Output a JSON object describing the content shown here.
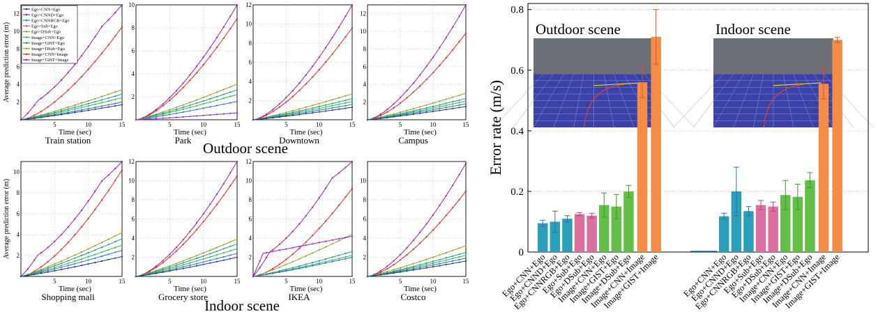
{
  "colors": {
    "purple": "#a21ba8",
    "red": "#e8251d",
    "olive": "#9b9b2a",
    "teal": "#1b9e8e",
    "green": "#3bb54a",
    "blue": "#2a78c2",
    "navy": "#223a8c",
    "pink": "#d4569e",
    "magenta": "#8a2ad0",
    "bar_blue": "#2a9fb9",
    "bar_pink": "#dc6f9d",
    "bar_green": "#63bf45",
    "bar_orange": "#f58c46",
    "err_blue": "#2a6fb0",
    "err_pink": "#b83f78",
    "err_green": "#3a9a2c",
    "err_orange": "#e0502a"
  },
  "left_panels": {
    "ylabel": "Average prediction error (m)",
    "xlabel": "Time (sec)",
    "xticks": [
      "5",
      "10",
      "15"
    ],
    "group_titles": {
      "outdoor": "Outdoor scene",
      "indoor": "Indoor scene"
    },
    "legend": [
      "Ego+CNN+Ego",
      "Ego+CNND+Ego",
      "Ego+CNNRGB+Ego",
      "Ego+Sub+Ego",
      "Ego+DSub+Ego",
      "Image+CNN+Ego",
      "Image+GIST+Ego",
      "Image+DSub+Ego",
      "Image+CNN+Image",
      "Image+GIST+Image"
    ]
  },
  "right_panel": {
    "ylabel": "Error rate (m/s)",
    "yticks": [
      "0",
      "0.2",
      "0.4",
      "0.6",
      "0.8"
    ],
    "inset_outdoor_title": "Outdoor scene",
    "inset_indoor_title": "Indoor scene"
  },
  "chart_data": [
    {
      "type": "line",
      "title": "Train station",
      "xlabel": "Time (sec)",
      "ylabel": "Average prediction error (m)",
      "xlim": [
        0,
        15
      ],
      "ylim": [
        0,
        13
      ],
      "yticks": [
        2,
        4,
        6,
        8,
        10,
        12
      ],
      "series": [
        {
          "name": "Image+GIST+Image",
          "x": [
            0,
            15
          ],
          "y": [
            0,
            13
          ],
          "color": "purple"
        },
        {
          "name": "Image+CNN+Image",
          "x": [
            0,
            15
          ],
          "y": [
            0,
            10.5
          ],
          "color": "red"
        },
        {
          "name": "Image+DSub+Ego",
          "x": [
            0,
            15
          ],
          "y": [
            0,
            3.4
          ],
          "color": "olive"
        },
        {
          "name": "Image+CNN+Ego",
          "x": [
            0,
            15
          ],
          "y": [
            0,
            2.9
          ],
          "color": "teal"
        },
        {
          "name": "Image+GIST+Ego",
          "x": [
            0,
            15
          ],
          "y": [
            0,
            2.5
          ],
          "color": "green"
        },
        {
          "name": "Ego+CNN+Ego",
          "x": [
            0,
            15
          ],
          "y": [
            0,
            2.0
          ],
          "color": "blue"
        },
        {
          "name": "Ego+CNND+Ego",
          "x": [
            0,
            15
          ],
          "y": [
            0,
            1.7
          ],
          "color": "navy"
        }
      ]
    },
    {
      "type": "line",
      "title": "Park",
      "xlabel": "Time (sec)",
      "ylabel": "",
      "xlim": [
        0,
        15
      ],
      "ylim": [
        0,
        10
      ],
      "yticks": [
        2,
        4,
        6,
        8,
        10
      ],
      "series": [
        {
          "name": "Image+GIST+Image",
          "x": [
            0,
            15
          ],
          "y": [
            0,
            10
          ],
          "color": "purple"
        },
        {
          "name": "Image+CNN+Image",
          "x": [
            0,
            15
          ],
          "y": [
            0,
            8.8
          ],
          "color": "red"
        },
        {
          "name": "Image+DSub+Ego",
          "x": [
            0,
            15
          ],
          "y": [
            0,
            3.1
          ],
          "color": "olive"
        },
        {
          "name": "Image+CNN+Ego",
          "x": [
            0,
            15
          ],
          "y": [
            0,
            2.6
          ],
          "color": "teal"
        },
        {
          "name": "Image+GIST+Ego",
          "x": [
            0,
            15
          ],
          "y": [
            0,
            2.2
          ],
          "color": "green"
        },
        {
          "name": "Ego+CNN+Ego",
          "x": [
            0,
            15
          ],
          "y": [
            0,
            1.6
          ],
          "color": "blue"
        },
        {
          "name": "Ego+CNND+Ego",
          "x": [
            0,
            15
          ],
          "y": [
            0,
            0.6
          ],
          "color": "magenta"
        }
      ]
    },
    {
      "type": "line",
      "title": "Downtown",
      "xlabel": "Time (sec)",
      "ylabel": "",
      "xlim": [
        0,
        15
      ],
      "ylim": [
        0,
        12
      ],
      "yticks": [
        2,
        4,
        6,
        8,
        10,
        12
      ],
      "series": [
        {
          "name": "Image+GIST+Image",
          "x": [
            0,
            15
          ],
          "y": [
            0,
            12
          ],
          "color": "purple"
        },
        {
          "name": "Image+CNN+Image",
          "x": [
            0,
            15
          ],
          "y": [
            0,
            9.6
          ],
          "color": "red"
        },
        {
          "name": "Image+DSub+Ego",
          "x": [
            0,
            15
          ],
          "y": [
            0,
            2.7
          ],
          "color": "olive"
        },
        {
          "name": "Image+CNN+Ego",
          "x": [
            0,
            15
          ],
          "y": [
            0,
            2.2
          ],
          "color": "teal"
        },
        {
          "name": "Image+GIST+Ego",
          "x": [
            0,
            15
          ],
          "y": [
            0,
            1.9
          ],
          "color": "green"
        },
        {
          "name": "Ego+CNN+Ego",
          "x": [
            0,
            15
          ],
          "y": [
            0,
            1.6
          ],
          "color": "blue"
        },
        {
          "name": "Ego+CNND+Ego",
          "x": [
            0,
            15
          ],
          "y": [
            0,
            1.3
          ],
          "color": "navy"
        }
      ]
    },
    {
      "type": "line",
      "title": "Campus",
      "xlabel": "Time (sec)",
      "ylabel": "",
      "xlim": [
        0,
        15
      ],
      "ylim": [
        0,
        13
      ],
      "yticks": [
        2,
        4,
        6,
        8,
        10,
        12
      ],
      "series": [
        {
          "name": "Image+GIST+Image",
          "x": [
            0,
            15
          ],
          "y": [
            0,
            13
          ],
          "color": "purple"
        },
        {
          "name": "Image+CNN+Image",
          "x": [
            0,
            15
          ],
          "y": [
            0,
            9.8
          ],
          "color": "red"
        },
        {
          "name": "Image+DSub+Ego",
          "x": [
            0,
            15
          ],
          "y": [
            0,
            3.0
          ],
          "color": "olive"
        },
        {
          "name": "Image+CNN+Ego",
          "x": [
            0,
            15
          ],
          "y": [
            0,
            2.4
          ],
          "color": "teal"
        },
        {
          "name": "Image+GIST+Ego",
          "x": [
            0,
            15
          ],
          "y": [
            0,
            2.1
          ],
          "color": "green"
        },
        {
          "name": "Ego+CNN+Ego",
          "x": [
            0,
            15
          ],
          "y": [
            0,
            1.8
          ],
          "color": "blue"
        },
        {
          "name": "Ego+CNND+Ego",
          "x": [
            0,
            15
          ],
          "y": [
            0,
            1.5
          ],
          "color": "navy"
        }
      ]
    },
    {
      "type": "line",
      "title": "Shopping mall",
      "xlabel": "Time (sec)",
      "ylabel": "Average prediction error (m)",
      "xlim": [
        0,
        15
      ],
      "ylim": [
        0,
        11
      ],
      "yticks": [
        2,
        4,
        6,
        8,
        10
      ],
      "series": [
        {
          "name": "Image+GIST+Image",
          "x": [
            0,
            15
          ],
          "y": [
            0,
            11
          ],
          "color": "purple"
        },
        {
          "name": "Image+CNN+Image",
          "x": [
            0,
            15
          ],
          "y": [
            0,
            10.2
          ],
          "color": "red"
        },
        {
          "name": "Image+DSub+Ego",
          "x": [
            0,
            15
          ],
          "y": [
            0,
            4.2
          ],
          "color": "olive"
        },
        {
          "name": "Image+CNN+Ego",
          "x": [
            0,
            15
          ],
          "y": [
            0,
            3.6
          ],
          "color": "teal"
        },
        {
          "name": "Image+GIST+Ego",
          "x": [
            0,
            15
          ],
          "y": [
            0,
            3.0
          ],
          "color": "green"
        },
        {
          "name": "Ego+CNN+Ego",
          "x": [
            0,
            15
          ],
          "y": [
            0,
            2.5
          ],
          "color": "blue"
        },
        {
          "name": "Ego+CNND+Ego",
          "x": [
            0,
            15
          ],
          "y": [
            0,
            1.9
          ],
          "color": "navy"
        }
      ]
    },
    {
      "type": "line",
      "title": "Grocery store",
      "xlabel": "Time (sec)",
      "ylabel": "",
      "xlim": [
        0,
        15
      ],
      "ylim": [
        0,
        12
      ],
      "yticks": [
        2,
        4,
        6,
        8,
        10,
        12
      ],
      "series": [
        {
          "name": "Image+GIST+Image",
          "x": [
            0,
            15
          ],
          "y": [
            0,
            12
          ],
          "color": "purple"
        },
        {
          "name": "Image+CNN+Image",
          "x": [
            0,
            15
          ],
          "y": [
            0,
            10.5
          ],
          "color": "red"
        },
        {
          "name": "Image+DSub+Ego",
          "x": [
            0,
            15
          ],
          "y": [
            0,
            3.9
          ],
          "color": "olive"
        },
        {
          "name": "Image+CNN+Ego",
          "x": [
            0,
            15
          ],
          "y": [
            0,
            3.4
          ],
          "color": "teal"
        },
        {
          "name": "Image+GIST+Ego",
          "x": [
            0,
            15
          ],
          "y": [
            0,
            2.9
          ],
          "color": "green"
        },
        {
          "name": "Ego+CNN+Ego",
          "x": [
            0,
            15
          ],
          "y": [
            0,
            2.4
          ],
          "color": "blue"
        },
        {
          "name": "Ego+CNND+Ego",
          "x": [
            0,
            15
          ],
          "y": [
            0,
            2.0
          ],
          "color": "navy"
        }
      ]
    },
    {
      "type": "line",
      "title": "IKEA",
      "xlabel": "Time (sec)",
      "ylabel": "",
      "xlim": [
        0,
        15
      ],
      "ylim": [
        0,
        12
      ],
      "yticks": [
        2,
        4,
        6,
        8,
        10,
        12
      ],
      "series": [
        {
          "name": "Image+GIST+Image",
          "x": [
            0,
            15
          ],
          "y": [
            0,
            12
          ],
          "color": "purple"
        },
        {
          "name": "Image+CNN+Image",
          "x": [
            0,
            15
          ],
          "y": [
            0,
            9.2
          ],
          "color": "red"
        },
        {
          "name": "Image+DSub+Ego",
          "x": [
            0,
            15
          ],
          "y": [
            0,
            4.4
          ],
          "color": "olive"
        },
        {
          "name": "Image+CNN+Ego",
          "x": [
            0,
            15
          ],
          "y": [
            0,
            2.6
          ],
          "color": "teal"
        },
        {
          "name": "Image+GIST+Ego",
          "x": [
            0,
            15
          ],
          "y": [
            0,
            2.2
          ],
          "color": "green"
        },
        {
          "name": "Ego+CNN+Ego",
          "x": [
            0,
            15
          ],
          "y": [
            0,
            2.0
          ],
          "color": "blue"
        },
        {
          "name": "Ego+CNND+Ego",
          "x": [
            0,
            15
          ],
          "y": [
            0,
            4.2
          ],
          "color": "magenta"
        }
      ]
    },
    {
      "type": "line",
      "title": "Costco",
      "xlabel": "Time (sec)",
      "ylabel": "",
      "xlim": [
        0,
        15
      ],
      "ylim": [
        0,
        12
      ],
      "yticks": [
        2,
        4,
        6,
        8,
        10
      ],
      "series": [
        {
          "name": "Image+GIST+Image",
          "x": [
            0,
            15
          ],
          "y": [
            0,
            11.8
          ],
          "color": "purple"
        },
        {
          "name": "Image+CNN+Image",
          "x": [
            0,
            15
          ],
          "y": [
            0,
            8.9
          ],
          "color": "red"
        },
        {
          "name": "Image+DSub+Ego",
          "x": [
            0,
            15
          ],
          "y": [
            0,
            3.2
          ],
          "color": "olive"
        },
        {
          "name": "Image+CNN+Ego",
          "x": [
            0,
            15
          ],
          "y": [
            0,
            2.5
          ],
          "color": "teal"
        },
        {
          "name": "Image+GIST+Ego",
          "x": [
            0,
            15
          ],
          "y": [
            0,
            2.2
          ],
          "color": "green"
        },
        {
          "name": "Ego+CNN+Ego",
          "x": [
            0,
            15
          ],
          "y": [
            0,
            1.9
          ],
          "color": "blue"
        },
        {
          "name": "Ego+CNND+Ego",
          "x": [
            0,
            15
          ],
          "y": [
            0,
            1.6
          ],
          "color": "navy"
        }
      ]
    },
    {
      "type": "bar",
      "title": "",
      "ylabel": "Error rate (m/s)",
      "ylim": [
        0,
        0.82
      ],
      "categories": [
        "Ego+CNN+Ego",
        "Ego+CNND+Ego",
        "Ego+CNNRGB+Ego",
        "Ego+Sub+Ego",
        "Ego+DSub+Ego",
        "Image+CNN+Ego",
        "Image+GIST+Ego",
        "Image+DSub+Ego",
        "Image+CNN+Image",
        "Image+GIST+Image"
      ],
      "series": [
        {
          "group": "Outdoor scene",
          "values": [
            0.095,
            0.1,
            0.11,
            0.125,
            0.12,
            0.155,
            0.15,
            0.2,
            0.56,
            0.71
          ],
          "errors": [
            0.01,
            0.035,
            0.01,
            0.005,
            0.008,
            0.04,
            0.04,
            0.02,
            0.05,
            0.09
          ]
        },
        {
          "group": "Indoor scene",
          "values": [
            0.118,
            0.2,
            0.135,
            0.155,
            0.15,
            0.188,
            0.182,
            0.237,
            0.555,
            0.7
          ],
          "errors": [
            0.01,
            0.08,
            0.015,
            0.015,
            0.015,
            0.048,
            0.042,
            0.025,
            0.05,
            0.008
          ]
        }
      ],
      "bar_colors": [
        "bar_blue",
        "bar_blue",
        "bar_blue",
        "bar_pink",
        "bar_pink",
        "bar_green",
        "bar_green",
        "bar_green",
        "bar_orange",
        "bar_orange"
      ]
    }
  ]
}
